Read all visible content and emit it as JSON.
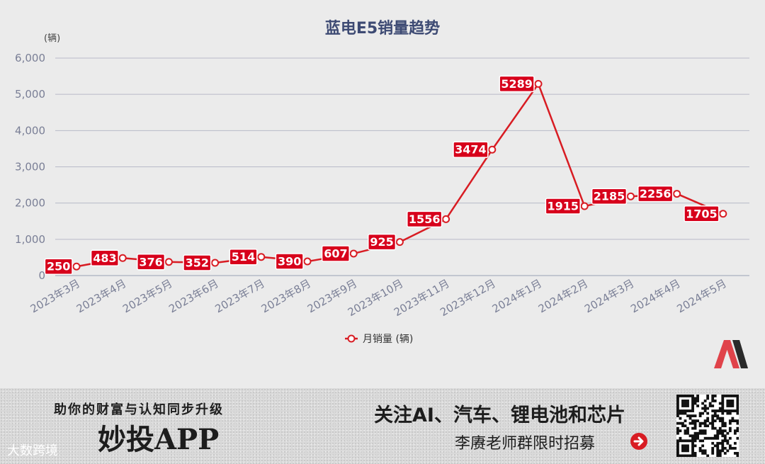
{
  "chart_data": {
    "type": "line",
    "title": "蓝电E5销量趋势",
    "unit_label": "(辆)",
    "categories": [
      "2023年3月",
      "2023年4月",
      "2023年5月",
      "2023年6月",
      "2023年7月",
      "2023年8月",
      "2023年9月",
      "2023年10月",
      "2023年11月",
      "2023年12月",
      "2024年1月",
      "2024年2月",
      "2024年3月",
      "2024年4月",
      "2024年5月"
    ],
    "series": [
      {
        "name": "月销量 (辆)",
        "values": [
          250,
          483,
          376,
          352,
          514,
          390,
          607,
          925,
          1556,
          3474,
          5289,
          1915,
          2185,
          2256,
          1705
        ]
      }
    ],
    "data_labels": [
      "250",
      "483",
      "376",
      "352",
      "514",
      "390",
      "607",
      "925",
      "1556",
      "3474",
      "5289",
      "1915",
      "2185",
      "2256",
      "1705"
    ],
    "ylim": [
      0,
      6000
    ],
    "yticks": [
      "0",
      "1,000",
      "2,000",
      "3,000",
      "4,000",
      "5,000",
      "6,000"
    ],
    "grid": true,
    "legend_position": "bottom",
    "colors": {
      "line": "#d81c23",
      "label_bg": "#d7001b",
      "grid": "#b8bac8",
      "axis_text": "#7a7f96",
      "title": "#3d4a73"
    }
  },
  "banner": {
    "tagline": "助你的财富与认知同步升级",
    "app_name": "妙投APP",
    "watermark": "大数跨境",
    "headline": "关注AI、汽车、锂电池和芯片",
    "subline": "李赓老师群限时招募",
    "arrow_icon": "arrow-right-circle-icon",
    "qr_icon": "qr-code-icon",
    "logo_icon": "m-logo-icon"
  }
}
